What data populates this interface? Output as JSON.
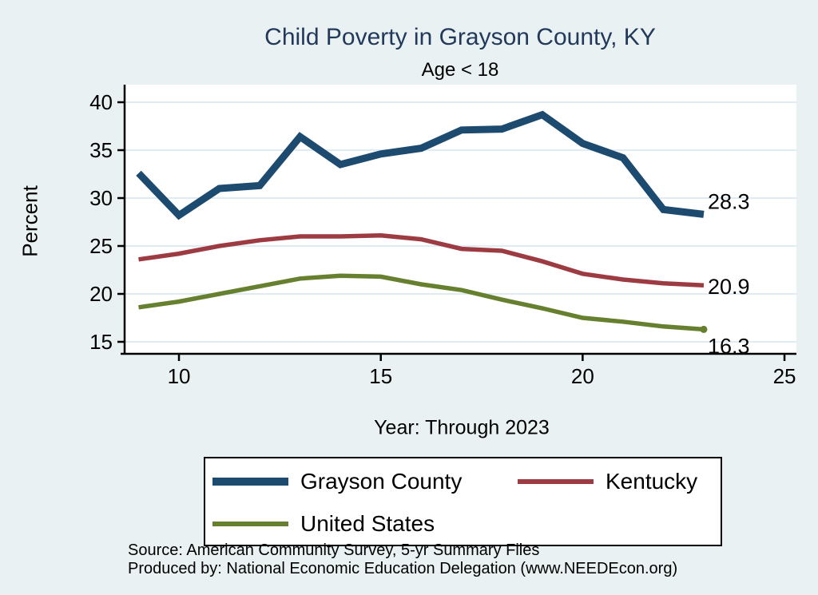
{
  "title": "Child Poverty in Grayson County, KY",
  "subtitle": "Age < 18",
  "footer": {
    "source_line": "Source: American Community Survey, 5-yr Summary Files",
    "produced_line": "Produced by: National Economic Education Delegation (www.NEEDEcon.org)"
  },
  "colors": {
    "background": "#e9f1f2",
    "plot_background": "#ffffff",
    "gridline": "#dfecf4",
    "axis": "#000000",
    "title_text": "#22395c",
    "tick_text": "#000000"
  },
  "chart_data": {
    "type": "line",
    "title": "Child Poverty in Grayson County, KY",
    "subtitle": "Age < 18",
    "xlabel": "Year: Through 2023",
    "ylabel": "Percent",
    "x": [
      9,
      10,
      11,
      12,
      13,
      14,
      15,
      16,
      17,
      18,
      19,
      20,
      21,
      22,
      23
    ],
    "x_ticks": [
      10,
      15,
      20,
      25
    ],
    "y_ticks": [
      15,
      20,
      25,
      30,
      35,
      40
    ],
    "xlim": [
      8.65,
      25.3
    ],
    "ylim": [
      13.8,
      41.8
    ],
    "grid": true,
    "legend_position": "bottom",
    "series": [
      {
        "name": "Grayson County",
        "color": "#1d4a6f",
        "line_width": 9,
        "values": [
          32.6,
          28.2,
          31.0,
          31.3,
          36.4,
          33.5,
          34.6,
          35.2,
          37.1,
          37.2,
          38.7,
          35.7,
          34.2,
          28.8,
          28.3
        ],
        "end_label": "28.3",
        "end_label_dy": -16,
        "end_marker": false
      },
      {
        "name": "Kentucky",
        "color": "#9d3b43",
        "line_width": 5.5,
        "values": [
          23.6,
          24.2,
          25.0,
          25.6,
          26.0,
          26.0,
          26.1,
          25.7,
          24.7,
          24.5,
          23.4,
          22.1,
          21.5,
          21.1,
          20.9
        ],
        "end_label": "20.9",
        "end_label_dy": 2,
        "end_marker": false
      },
      {
        "name": "United States",
        "color": "#66802f",
        "line_width": 5.5,
        "values": [
          18.6,
          19.2,
          20.0,
          20.8,
          21.6,
          21.9,
          21.8,
          21.0,
          20.4,
          19.4,
          18.5,
          17.5,
          17.1,
          16.6,
          16.3
        ],
        "end_label": "16.3",
        "end_label_dy": 21,
        "end_marker": true
      }
    ]
  }
}
